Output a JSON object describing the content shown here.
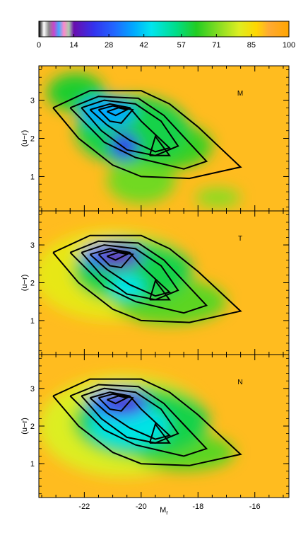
{
  "chart_data": {
    "type": "heatmap",
    "colorbar": {
      "min": 0,
      "max": 100,
      "ticks": [
        "0",
        "14",
        "28",
        "42",
        "57",
        "71",
        "85",
        "100"
      ]
    },
    "x_axis": {
      "label_main": "M",
      "label_sub": "r",
      "range": [
        -23.6,
        -14.8
      ],
      "ticks": [
        -22,
        -20,
        -18,
        -16
      ],
      "tick_labels": [
        "-22",
        "-20",
        "-18",
        "-16"
      ]
    },
    "y_axis": {
      "label": "(u−r)",
      "range": [
        0.1,
        3.9
      ],
      "ticks": [
        1,
        2,
        3
      ],
      "tick_labels": [
        "1",
        "2",
        "3"
      ]
    },
    "panels": [
      {
        "label": "M",
        "background_level": 90,
        "blobs": [
          {
            "x": -20.6,
            "y": 1.8,
            "rx": 0.5,
            "ry": 0.35,
            "level": 22
          },
          {
            "x": -21.2,
            "y": 2.7,
            "rx": 1.0,
            "ry": 0.4,
            "level": 38
          },
          {
            "x": -20.3,
            "y": 2.2,
            "rx": 2.0,
            "ry": 0.9,
            "level": 60
          },
          {
            "x": -22.3,
            "y": 3.2,
            "rx": 1.0,
            "ry": 0.5,
            "level": 62
          },
          {
            "x": -20.0,
            "y": 0.9,
            "rx": 1.2,
            "ry": 0.6,
            "level": 70
          },
          {
            "x": -17.3,
            "y": 0.45,
            "rx": 0.8,
            "ry": 0.25,
            "level": 72
          },
          {
            "x": -19.0,
            "y": 1.8,
            "rx": 1.5,
            "ry": 0.6,
            "level": 65
          }
        ]
      },
      {
        "label": "T",
        "background_level": 90,
        "blobs": [
          {
            "x": -20.8,
            "y": 2.65,
            "rx": 0.7,
            "ry": 0.22,
            "level": 14
          },
          {
            "x": -21.0,
            "y": 2.7,
            "rx": 1.1,
            "ry": 0.35,
            "level": 30
          },
          {
            "x": -20.5,
            "y": 1.9,
            "rx": 0.6,
            "ry": 0.3,
            "level": 45
          },
          {
            "x": -20.3,
            "y": 2.3,
            "rx": 2.1,
            "ry": 0.85,
            "level": 60
          },
          {
            "x": -19.0,
            "y": 1.5,
            "rx": 2.0,
            "ry": 0.6,
            "level": 68
          },
          {
            "x": -21.0,
            "y": 2.2,
            "rx": 2.8,
            "ry": 1.2,
            "level": 82
          }
        ]
      },
      {
        "label": "N",
        "background_level": 90,
        "blobs": [
          {
            "x": -20.6,
            "y": 2.6,
            "rx": 0.7,
            "ry": 0.22,
            "level": 18
          },
          {
            "x": -20.8,
            "y": 2.6,
            "rx": 1.1,
            "ry": 0.4,
            "level": 32
          },
          {
            "x": -20.4,
            "y": 2.0,
            "rx": 1.4,
            "ry": 0.55,
            "level": 46
          },
          {
            "x": -20.0,
            "y": 2.1,
            "rx": 2.4,
            "ry": 0.95,
            "level": 60
          },
          {
            "x": -18.5,
            "y": 1.3,
            "rx": 1.8,
            "ry": 0.5,
            "level": 68
          },
          {
            "x": -20.6,
            "y": 2.0,
            "rx": 3.0,
            "ry": 1.35,
            "level": 80
          }
        ]
      }
    ],
    "contours": [
      [
        [
          -23.1,
          2.8
        ],
        [
          -21.8,
          3.25
        ],
        [
          -20.0,
          3.25
        ],
        [
          -19.0,
          2.9
        ],
        [
          -18.0,
          2.3
        ],
        [
          -16.5,
          1.25
        ],
        [
          -18.3,
          0.95
        ],
        [
          -20.0,
          1.0
        ],
        [
          -21.0,
          1.3
        ],
        [
          -22.2,
          2.0
        ],
        [
          -23.1,
          2.8
        ]
      ],
      [
        [
          -22.5,
          2.8
        ],
        [
          -21.5,
          3.1
        ],
        [
          -20.1,
          3.05
        ],
        [
          -19.2,
          2.6
        ],
        [
          -17.7,
          1.4
        ],
        [
          -18.5,
          1.2
        ],
        [
          -20.2,
          1.5
        ],
        [
          -21.3,
          1.9
        ],
        [
          -22.5,
          2.8
        ]
      ],
      [
        [
          -22.1,
          2.8
        ],
        [
          -21.3,
          3.0
        ],
        [
          -20.2,
          2.9
        ],
        [
          -19.3,
          2.45
        ],
        [
          -18.7,
          1.8
        ],
        [
          -19.5,
          1.55
        ],
        [
          -20.5,
          1.7
        ],
        [
          -21.4,
          2.2
        ],
        [
          -22.1,
          2.8
        ]
      ],
      [
        [
          -21.8,
          2.75
        ],
        [
          -21.1,
          2.9
        ],
        [
          -20.4,
          2.8
        ],
        [
          -20.0,
          2.45
        ],
        [
          -19.0,
          1.75
        ],
        [
          -19.5,
          1.65
        ],
        [
          -20.4,
          1.95
        ],
        [
          -21.2,
          2.35
        ],
        [
          -21.8,
          2.75
        ]
      ],
      [
        [
          -21.5,
          2.75
        ],
        [
          -21.0,
          2.85
        ],
        [
          -20.3,
          2.75
        ],
        [
          -20.7,
          2.4
        ],
        [
          -21.1,
          2.45
        ],
        [
          -21.5,
          2.75
        ]
      ],
      [
        [
          -21.2,
          2.7
        ],
        [
          -20.8,
          2.8
        ],
        [
          -20.5,
          2.75
        ],
        [
          -20.9,
          2.6
        ],
        [
          -21.2,
          2.7
        ]
      ],
      [
        [
          -19.7,
          1.55
        ],
        [
          -19.0,
          1.55
        ],
        [
          -19.5,
          2.05
        ],
        [
          -19.7,
          1.55
        ]
      ]
    ]
  }
}
